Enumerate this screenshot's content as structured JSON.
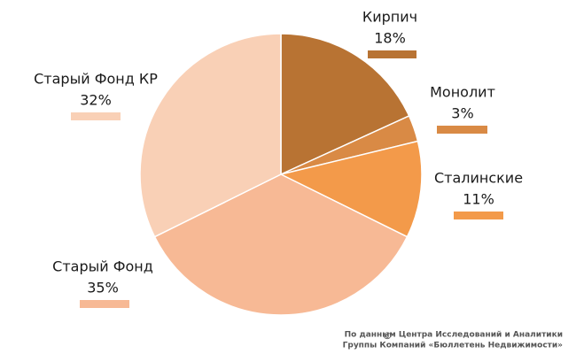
{
  "chart_data": {
    "type": "pie",
    "categories": [
      "Кирпич",
      "Монолит",
      "Сталинские",
      "Старый Фонд",
      "Старый Фонд КР"
    ],
    "values": [
      18,
      3,
      11,
      35,
      32
    ],
    "value_labels": [
      "18%",
      "3%",
      "11%",
      "35%",
      "32%"
    ],
    "colors": [
      "#b87333",
      "#d98a45",
      "#f39a4a",
      "#f7b995",
      "#f9d0b6"
    ],
    "source_mark": "©",
    "source": [
      "По данным Центра Исследований и Аналитики",
      "Группы Компаний «Бюллетень Недвижимости»"
    ]
  }
}
